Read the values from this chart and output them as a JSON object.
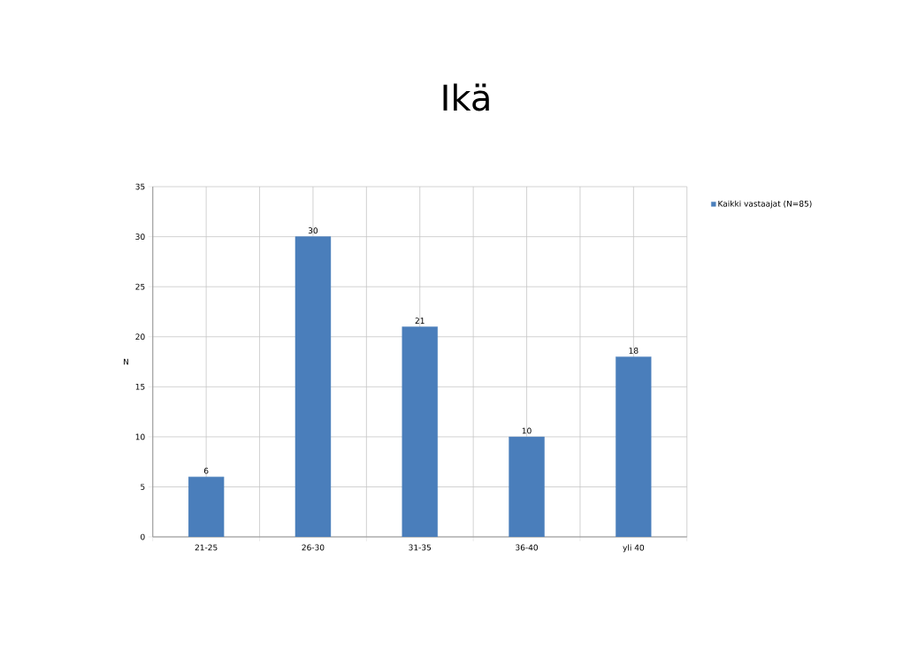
{
  "chart_data": {
    "type": "bar",
    "title": "Ikä",
    "ylabel": "N",
    "categories": [
      "21-25",
      "26-30",
      "31-35",
      "36-40",
      "yli 40"
    ],
    "series": [
      {
        "name": "Kaikki vastaajat (N=85)",
        "color": "#4a7ebb",
        "values": [
          6,
          30,
          21,
          10,
          18
        ]
      }
    ],
    "ylim": [
      0,
      35
    ],
    "yticks": [
      0,
      5,
      10,
      15,
      20,
      25,
      30,
      35
    ],
    "grid": true,
    "legend": "right",
    "data_labels": true
  }
}
